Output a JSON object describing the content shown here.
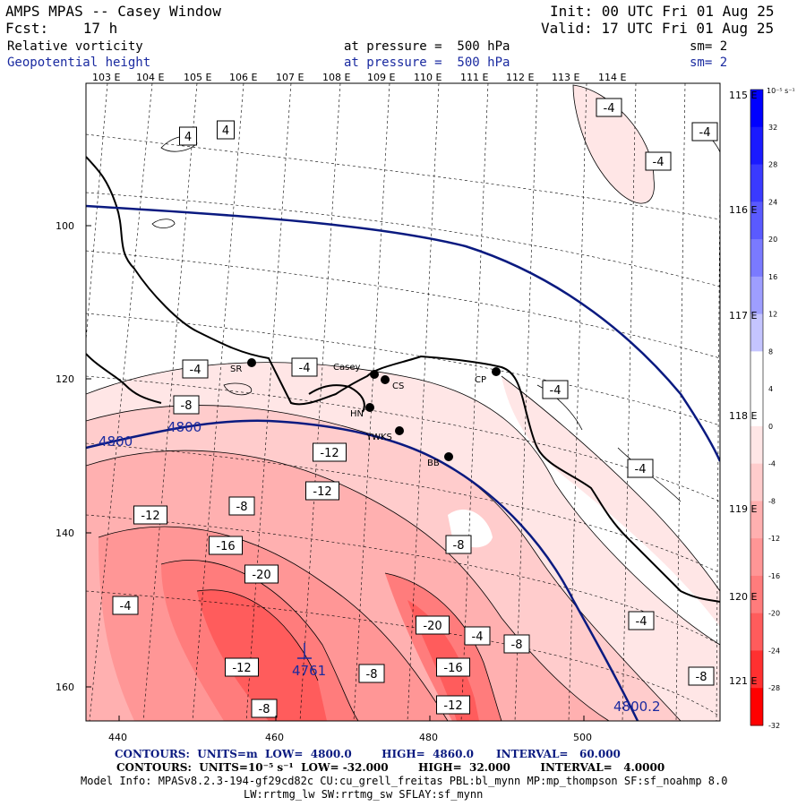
{
  "header": {
    "title": "AMPS MPAS -- Casey Window",
    "fcst": "Fcst:    17 h",
    "init": "Init: 00 UTC Fri 01 Aug 25",
    "valid": "Valid: 17 UTC Fri 01 Aug 25",
    "field1": "Relative vorticity",
    "field1_level": "at pressure =  500 hPa",
    "field1_sm": "sm= 2",
    "field2": "Geopotential height",
    "field2_level": "at pressure =  500 hPa",
    "field2_sm": "sm= 2"
  },
  "lon_top": [
    "103 E",
    "104 E",
    "105 E",
    "106 E",
    "107 E",
    "108 E",
    "109 E",
    "110 E",
    "111 E",
    "112 E",
    "113 E",
    "114 E"
  ],
  "lon_right": [
    "115 E",
    "116 E",
    "117 E",
    "118 E",
    "119 E",
    "120 E",
    "121 E"
  ],
  "y_ticks": [
    "100",
    "120",
    "140",
    "160"
  ],
  "x_ticks": [
    "440",
    "460",
    "480",
    "500"
  ],
  "colorbar": {
    "unit": "10⁻⁵ s⁻¹",
    "labels": [
      "32",
      "28",
      "24",
      "20",
      "16",
      "12",
      "8",
      "4",
      "0",
      "-4",
      "-8",
      "-12",
      "-16",
      "-20",
      "-24",
      "-28",
      "-32"
    ],
    "colors": [
      "#0000ff",
      "#1a1aff",
      "#3a3aff",
      "#5a5aff",
      "#7a7aff",
      "#9e9eff",
      "#c4c4ff",
      "#ffffff",
      "#ffffff",
      "#ffe6e6",
      "#ffcccc",
      "#ffb0b0",
      "#ff9696",
      "#ff7c7c",
      "#ff5c5c",
      "#ff3030",
      "#ff0000"
    ]
  },
  "stations": [
    {
      "name": "SR"
    },
    {
      "name": "Casey"
    },
    {
      "name": "CS"
    },
    {
      "name": "CP"
    },
    {
      "name": "HN"
    },
    {
      "name": "YWKS"
    },
    {
      "name": "BB"
    }
  ],
  "vort_labels": [
    "4",
    "4",
    "-4",
    "-4",
    "-4",
    "-4",
    "-4",
    "-4",
    "-8",
    "-12",
    "-12",
    "-12",
    "-8",
    "-16",
    "-20",
    "-4",
    "-12",
    "-8",
    "-8",
    "-20",
    "-4",
    "-8",
    "-16",
    "-12",
    "-4",
    "-4",
    "-8",
    "-8"
  ],
  "height_labels": [
    "4800",
    "4800",
    "4761",
    "4800.2"
  ],
  "footer": {
    "contours1": "CONTOURS:  UNITS=m  LOW=  4800.0        HIGH=  4860.0      INTERVAL=   60.000",
    "contours2": "CONTOURS:  UNITS=10⁻⁵ s⁻¹  LOW= -32.000        HIGH=  32.000        INTERVAL=   4.0000",
    "model_info": "Model Info: MPASv8.2.3-194-gf29cd82c CU:cu_grell_freitas PBL:bl_mynn MP:mp_thompson SF:sf_noahmp 8.0",
    "model_info2": "LW:rrtmg_lw SW:rrtmg_sw SFLAY:sf_mynn"
  }
}
